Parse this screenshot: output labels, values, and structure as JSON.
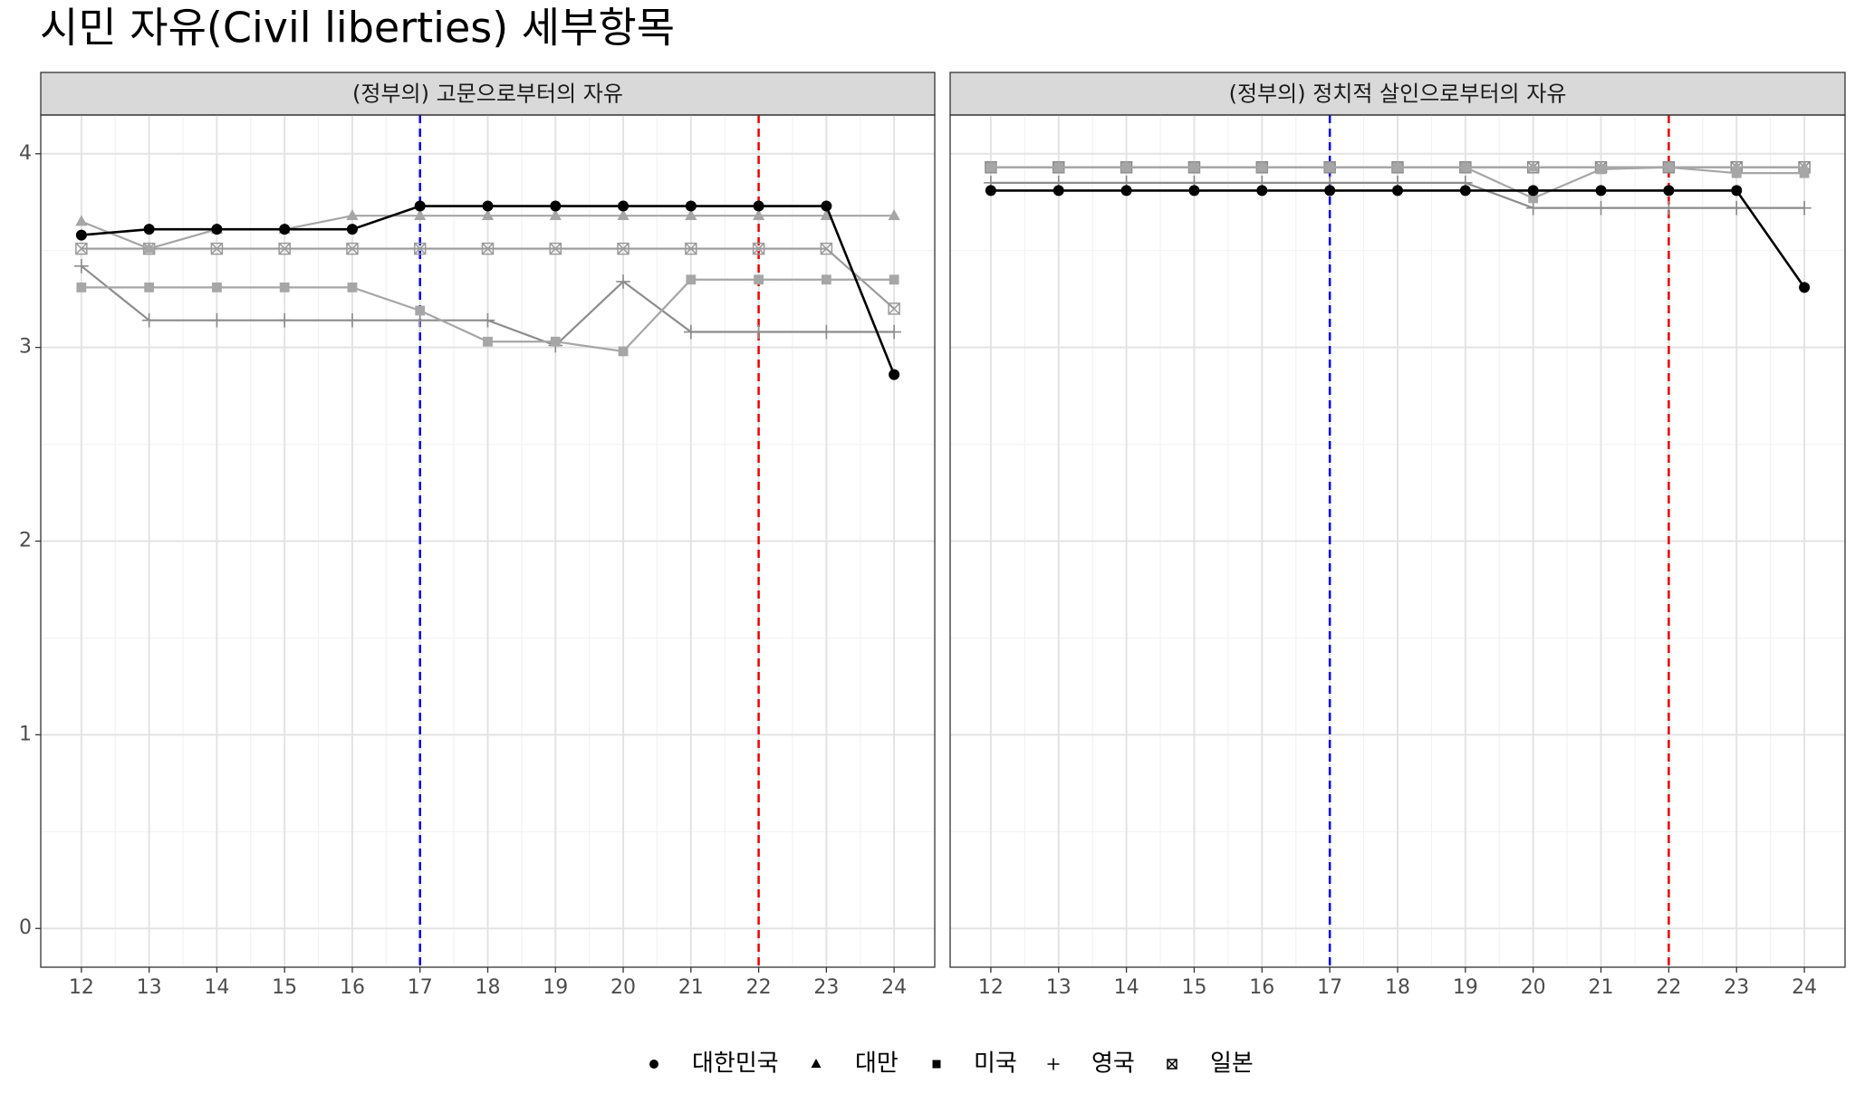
{
  "title": "시민 자유(Civil liberties) 세부항목",
  "chart_data": [
    {
      "type": "line",
      "title": "(정부의) 고문으로부터의 자유",
      "x": [
        12,
        13,
        14,
        15,
        16,
        17,
        18,
        19,
        20,
        21,
        22,
        23,
        24
      ],
      "xlim": [
        11.4,
        24.6
      ],
      "ylim": [
        -0.2,
        4.2
      ],
      "xticks": [
        12,
        13,
        14,
        15,
        16,
        17,
        18,
        19,
        20,
        21,
        22,
        23,
        24
      ],
      "yticks": [
        0,
        1,
        2,
        3,
        4
      ],
      "grid": true,
      "vlines": [
        {
          "x": 17,
          "color": "#0000ee"
        },
        {
          "x": 22,
          "color": "#ee0000"
        }
      ],
      "series": [
        {
          "name": "대한민국",
          "marker": "circle",
          "color": "#000000",
          "values": [
            3.58,
            3.61,
            3.61,
            3.61,
            3.61,
            3.73,
            3.73,
            3.73,
            3.73,
            3.73,
            3.73,
            3.73,
            2.86
          ]
        },
        {
          "name": "대만",
          "marker": "triangle",
          "color": "#a6a6a6",
          "values": [
            3.65,
            3.51,
            3.61,
            3.61,
            3.68,
            3.68,
            3.68,
            3.68,
            3.68,
            3.68,
            3.68,
            3.68,
            3.68
          ]
        },
        {
          "name": "미국",
          "marker": "square",
          "color": "#a6a6a6",
          "values": [
            3.31,
            3.31,
            3.31,
            3.31,
            3.31,
            3.19,
            3.03,
            3.03,
            2.98,
            3.35,
            3.35,
            3.35,
            3.35
          ]
        },
        {
          "name": "영국",
          "marker": "plus",
          "color": "#8c8c8c",
          "values": [
            3.42,
            3.14,
            3.14,
            3.14,
            3.14,
            3.14,
            3.14,
            3.01,
            3.34,
            3.08,
            3.08,
            3.08,
            3.08
          ]
        },
        {
          "name": "일본",
          "marker": "boxx",
          "color": "#9a9a9a",
          "values": [
            3.51,
            3.51,
            3.51,
            3.51,
            3.51,
            3.51,
            3.51,
            3.51,
            3.51,
            3.51,
            3.51,
            3.51,
            3.2
          ]
        }
      ]
    },
    {
      "type": "line",
      "title": "(정부의) 정치적 살인으로부터의 자유",
      "x": [
        12,
        13,
        14,
        15,
        16,
        17,
        18,
        19,
        20,
        21,
        22,
        23,
        24
      ],
      "xlim": [
        11.4,
        24.6
      ],
      "ylim": [
        -0.2,
        4.2
      ],
      "xticks": [
        12,
        13,
        14,
        15,
        16,
        17,
        18,
        19,
        20,
        21,
        22,
        23,
        24
      ],
      "yticks": [
        0,
        1,
        2,
        3,
        4
      ],
      "grid": true,
      "vlines": [
        {
          "x": 17,
          "color": "#0000ee"
        },
        {
          "x": 22,
          "color": "#ee0000"
        }
      ],
      "series": [
        {
          "name": "대한민국",
          "marker": "circle",
          "color": "#000000",
          "values": [
            3.81,
            3.81,
            3.81,
            3.81,
            3.81,
            3.81,
            3.81,
            3.81,
            3.81,
            3.81,
            3.81,
            3.81,
            3.31
          ]
        },
        {
          "name": "대만",
          "marker": "triangle",
          "color": "#a6a6a6",
          "values": [
            3.93,
            3.93,
            3.93,
            3.93,
            3.93,
            3.93,
            3.93,
            3.93,
            3.93,
            3.93,
            3.93,
            3.93,
            3.93
          ]
        },
        {
          "name": "미국",
          "marker": "square",
          "color": "#a6a6a6",
          "values": [
            3.93,
            3.93,
            3.93,
            3.93,
            3.93,
            3.93,
            3.93,
            3.93,
            3.77,
            3.92,
            3.93,
            3.9,
            3.9
          ]
        },
        {
          "name": "영국",
          "marker": "plus",
          "color": "#8c8c8c",
          "values": [
            3.85,
            3.85,
            3.85,
            3.85,
            3.85,
            3.85,
            3.85,
            3.85,
            3.72,
            3.72,
            3.72,
            3.72,
            3.72
          ]
        },
        {
          "name": "일본",
          "marker": "boxx",
          "color": "#8a8a8a",
          "values": [
            3.93,
            3.93,
            3.93,
            3.93,
            3.93,
            3.93,
            3.93,
            3.93,
            3.93,
            3.93,
            3.93,
            3.93,
            3.93
          ]
        }
      ]
    }
  ]
}
